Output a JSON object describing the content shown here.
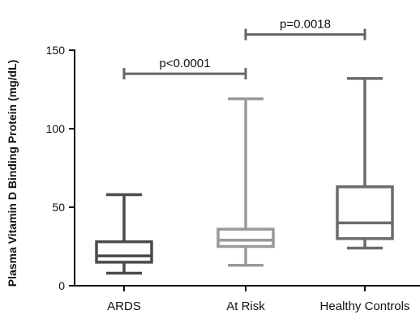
{
  "chart_data": {
    "type": "box",
    "ylabel": "Plasma Vitamin D Binding Protein (mg/dL)",
    "ylim": [
      0,
      150
    ],
    "yticks": [
      0,
      50,
      100,
      150
    ],
    "categories": [
      "ARDS",
      "At Risk",
      "Healthy Controls"
    ],
    "boxes": [
      {
        "category": "ARDS",
        "min": 8,
        "q1": 15,
        "median": 19,
        "q3": 28,
        "max": 58,
        "color": "#4a4a4a"
      },
      {
        "category": "At Risk",
        "min": 13,
        "q1": 25,
        "median": 29,
        "q3": 36,
        "max": 119,
        "color": "#999999"
      },
      {
        "category": "Healthy Controls",
        "min": 24,
        "q1": 30,
        "median": 40,
        "q3": 63,
        "max": 132,
        "color": "#6b6b6b"
      }
    ],
    "annotations": [
      {
        "label": "p<0.0001",
        "from": "ARDS",
        "to": "At Risk",
        "y": 135
      },
      {
        "label": "p=0.0018",
        "from": "At Risk",
        "to": "Healthy Controls",
        "y": 160
      }
    ]
  }
}
